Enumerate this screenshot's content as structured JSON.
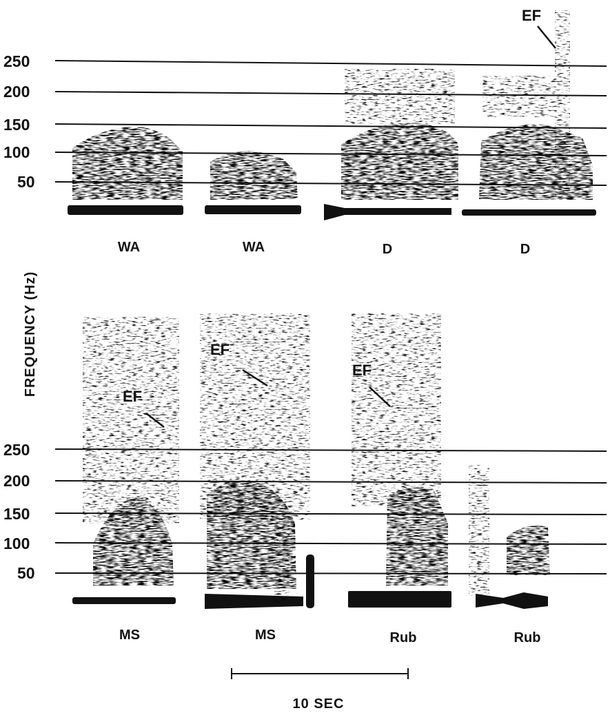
{
  "figure": {
    "y_axis_label": "FREQUENCY (Hz)",
    "time_scale_label": "10 SEC",
    "tick_labels": [
      "50",
      "100",
      "150",
      "200",
      "250"
    ],
    "callout_label": "EF"
  },
  "chart_data": [
    {
      "type": "spectrogram",
      "panel": "top",
      "ylabel": "FREQUENCY (Hz)",
      "yticks": [
        50,
        100,
        150,
        200,
        250
      ],
      "grid": true,
      "segments": [
        {
          "label": "WA",
          "freq_range": [
            0,
            130
          ],
          "ef_annotation": false
        },
        {
          "label": "WA",
          "freq_range": [
            0,
            100
          ],
          "ef_annotation": false
        },
        {
          "label": "D",
          "freq_range": [
            0,
            150
          ],
          "ef_annotation": false
        },
        {
          "label": "D",
          "freq_range": [
            0,
            290
          ],
          "ef_annotation": true
        }
      ]
    },
    {
      "type": "spectrogram",
      "panel": "bottom",
      "ylabel": "FREQUENCY (Hz)",
      "yticks": [
        50,
        100,
        150,
        200,
        250
      ],
      "grid": true,
      "segments": [
        {
          "label": "MS",
          "freq_range": [
            0,
            420
          ],
          "ef_annotation": true
        },
        {
          "label": "MS",
          "freq_range": [
            0,
            420
          ],
          "ef_annotation": true
        },
        {
          "label": "Rub",
          "freq_range": [
            0,
            420
          ],
          "ef_annotation": true
        },
        {
          "label": "Rub",
          "freq_range": [
            0,
            130
          ],
          "ef_annotation": false
        }
      ]
    }
  ]
}
